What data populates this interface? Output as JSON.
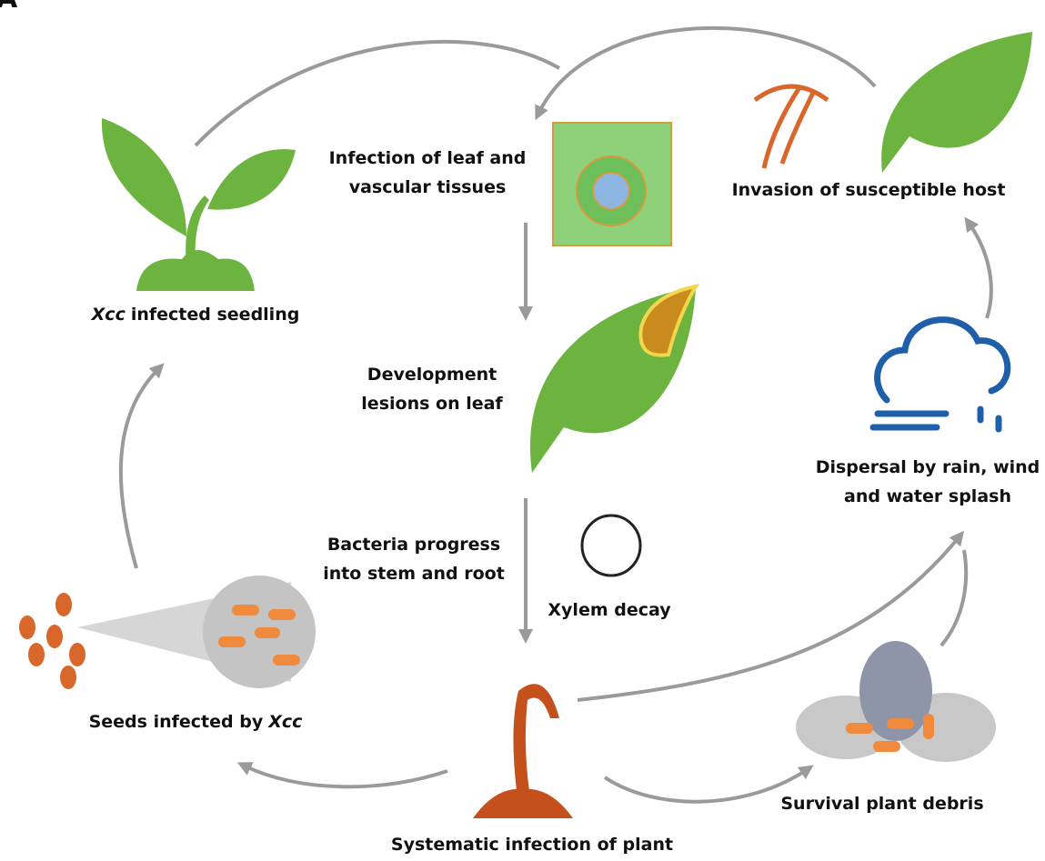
{
  "panel_label": "A",
  "nodes": [
    {
      "parts": [
        "Xcc",
        "infected seedling"
      ]
    },
    {
      "lines": [
        "Infection of leaf and",
        "vascular tissues"
      ]
    },
    {
      "lines": [
        "Invasion of susceptible host"
      ]
    },
    {
      "lines": [
        "Development",
        "lesions on leaf"
      ]
    },
    {
      "lines": [
        "Dispersal by rain, wind",
        "and water splash"
      ]
    },
    {
      "lines": [
        "Bacteria progress",
        "into stem and root"
      ]
    },
    {
      "lines": [
        "Xylem decay"
      ]
    },
    {
      "parts": [
        "Seeds infected by",
        "Xcc"
      ]
    },
    {
      "lines": [
        "Survival plant debris"
      ]
    },
    {
      "lines": [
        "Systematic infection of plant"
      ]
    }
  ]
}
